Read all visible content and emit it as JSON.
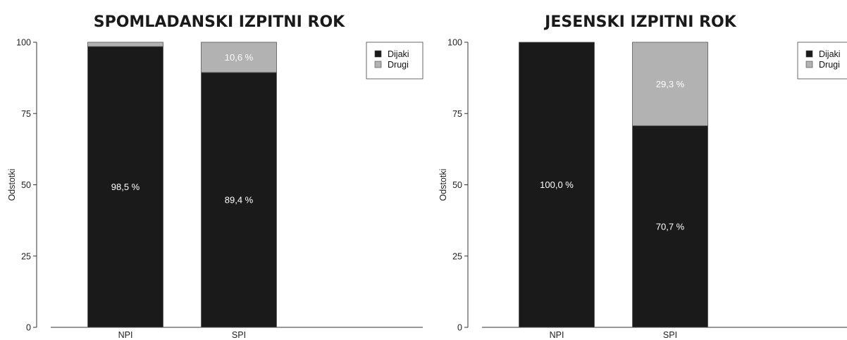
{
  "chart_data": [
    {
      "type": "bar",
      "stacked": true,
      "title": "SPOMLADANSKI IZPITNI ROK",
      "ylabel": "Odstotki",
      "ylim": [
        0,
        100
      ],
      "yticks": [
        0,
        25,
        50,
        75,
        100
      ],
      "categories": [
        "NPI",
        "SPI"
      ],
      "series": [
        {
          "name": "Dijaki",
          "color": "#1a1a1a",
          "values": [
            98.5,
            89.4
          ],
          "labels": [
            "98,5 %",
            "89,4 %"
          ]
        },
        {
          "name": "Drugi",
          "color": "#b2b2b2",
          "values": [
            1.5,
            10.6
          ],
          "labels": [
            "",
            "10,6 %"
          ]
        }
      ],
      "legend": "top-right",
      "grid": false
    },
    {
      "type": "bar",
      "stacked": true,
      "title": "JESENSKI IZPITNI ROK",
      "ylabel": "Odstotki",
      "ylim": [
        0,
        100
      ],
      "yticks": [
        0,
        25,
        50,
        75,
        100
      ],
      "categories": [
        "NPI",
        "SPI"
      ],
      "series": [
        {
          "name": "Dijaki",
          "color": "#1a1a1a",
          "values": [
            100.0,
            70.7
          ],
          "labels": [
            "100,0 %",
            "70,7 %"
          ]
        },
        {
          "name": "Drugi",
          "color": "#b2b2b2",
          "values": [
            0.0,
            29.3
          ],
          "labels": [
            "",
            "29,3 %"
          ]
        }
      ],
      "legend": "top-right",
      "grid": false
    }
  ]
}
